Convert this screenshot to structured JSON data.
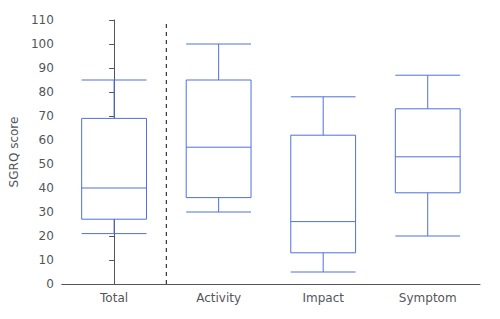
{
  "chart_data": {
    "type": "boxplot",
    "categories": [
      "Total",
      "Activity",
      "Impact",
      "Symptom"
    ],
    "values": [
      {
        "whisker_low": 21,
        "q1": 27,
        "median": 40,
        "q3": 69,
        "whisker_high": 85
      },
      {
        "whisker_low": 30,
        "q1": 36,
        "median": 57,
        "q3": 85,
        "whisker_high": 100
      },
      {
        "whisker_low": 5,
        "q1": 13,
        "median": 26,
        "q3": 62,
        "whisker_high": 78
      },
      {
        "whisker_low": 20,
        "q1": 38,
        "median": 53,
        "q3": 73,
        "whisker_high": 87
      }
    ],
    "ylabel": "SGRQ score",
    "ylim": [
      0,
      110
    ],
    "yticks": [
      0,
      10,
      20,
      30,
      40,
      50,
      60,
      70,
      80,
      90,
      100,
      110
    ],
    "grid": false
  }
}
